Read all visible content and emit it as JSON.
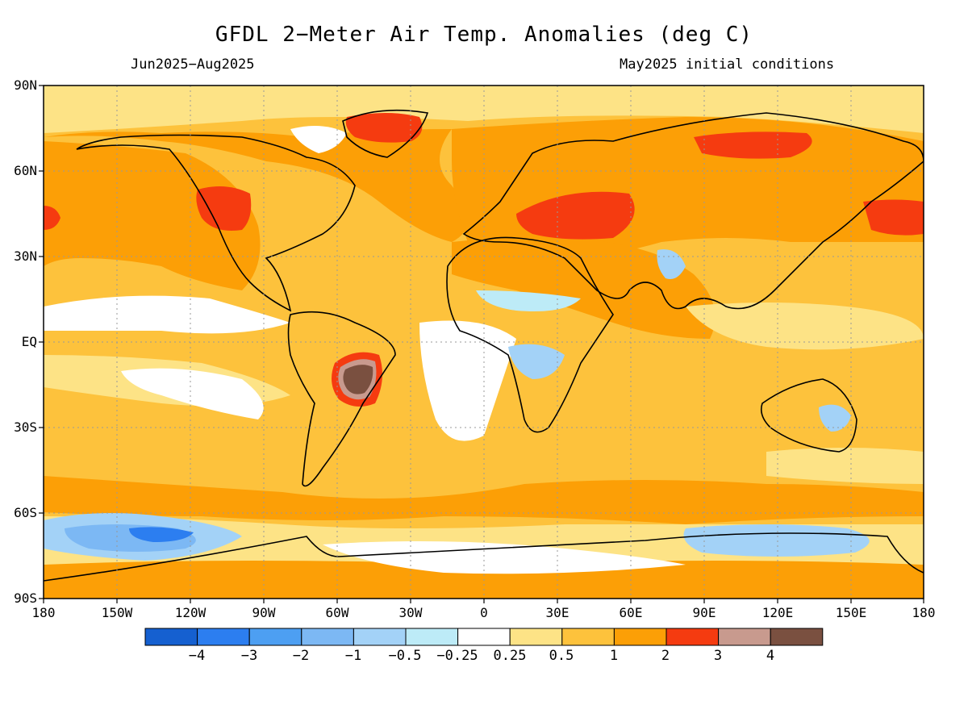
{
  "header": {
    "title": "GFDL 2−Meter Air Temp. Anomalies (deg C)",
    "period": "Jun2025−Aug2025",
    "init": "May2025 initial conditions"
  },
  "axes": {
    "lat_labels": [
      "90N",
      "60N",
      "30N",
      "EQ",
      "30S",
      "60S",
      "90S"
    ],
    "lon_labels": [
      "180",
      "150W",
      "120W",
      "90W",
      "60W",
      "30W",
      "0",
      "30E",
      "60E",
      "90E",
      "120E",
      "150E",
      "180"
    ]
  },
  "colorbar": {
    "colors": [
      "#1560d0",
      "#2c7ef0",
      "#4d9ff2",
      "#7cb8f4",
      "#a3d2f7",
      "#bdebf7",
      "#ffffff",
      "#fde386",
      "#fdc23c",
      "#fc9f06",
      "#f53b10",
      "#c89a8e",
      "#7a5040"
    ],
    "labels": [
      "−4",
      "−3",
      "−2",
      "−1",
      "−0.5",
      "−0.25",
      "0.25",
      "0.5",
      "1",
      "2",
      "3",
      "4"
    ]
  },
  "legend_levels": [
    -4,
    -3,
    -2,
    -1,
    -0.5,
    -0.25,
    0.25,
    0.5,
    1,
    2,
    3,
    4
  ],
  "colors": {
    "background": "#ffffff",
    "coastline": "#000000",
    "grid": "#999999"
  }
}
